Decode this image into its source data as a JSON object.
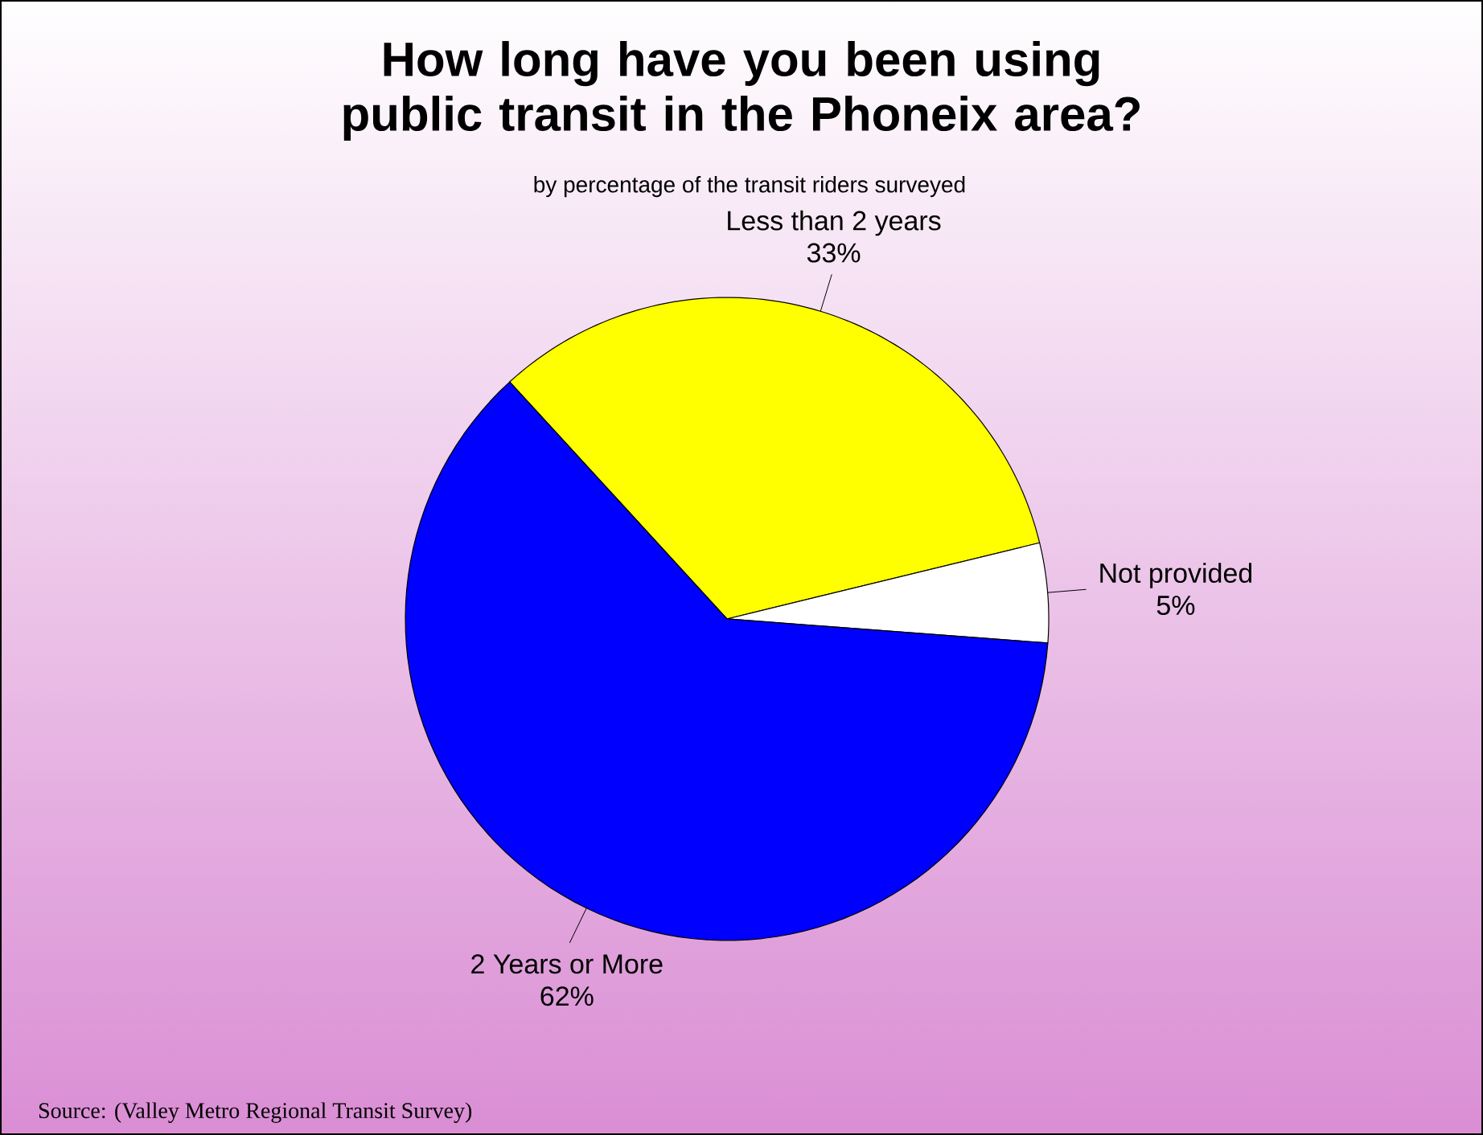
{
  "chart_data": {
    "type": "pie",
    "title": "How long have you been using public transit in the Phoneix area?",
    "subtitle": "by percentage of the transit riders surveyed",
    "categories": [
      "Less than 2 years",
      "Not provided",
      "2 Years or More"
    ],
    "values": [
      33,
      5,
      62
    ],
    "value_labels": [
      "33%",
      "5%",
      "62%"
    ],
    "colors": [
      "#ffff00",
      "#ffffff",
      "#0000ff"
    ],
    "annotations": [
      "Source:  (Valley Metro Regional Transit Survey)"
    ]
  }
}
